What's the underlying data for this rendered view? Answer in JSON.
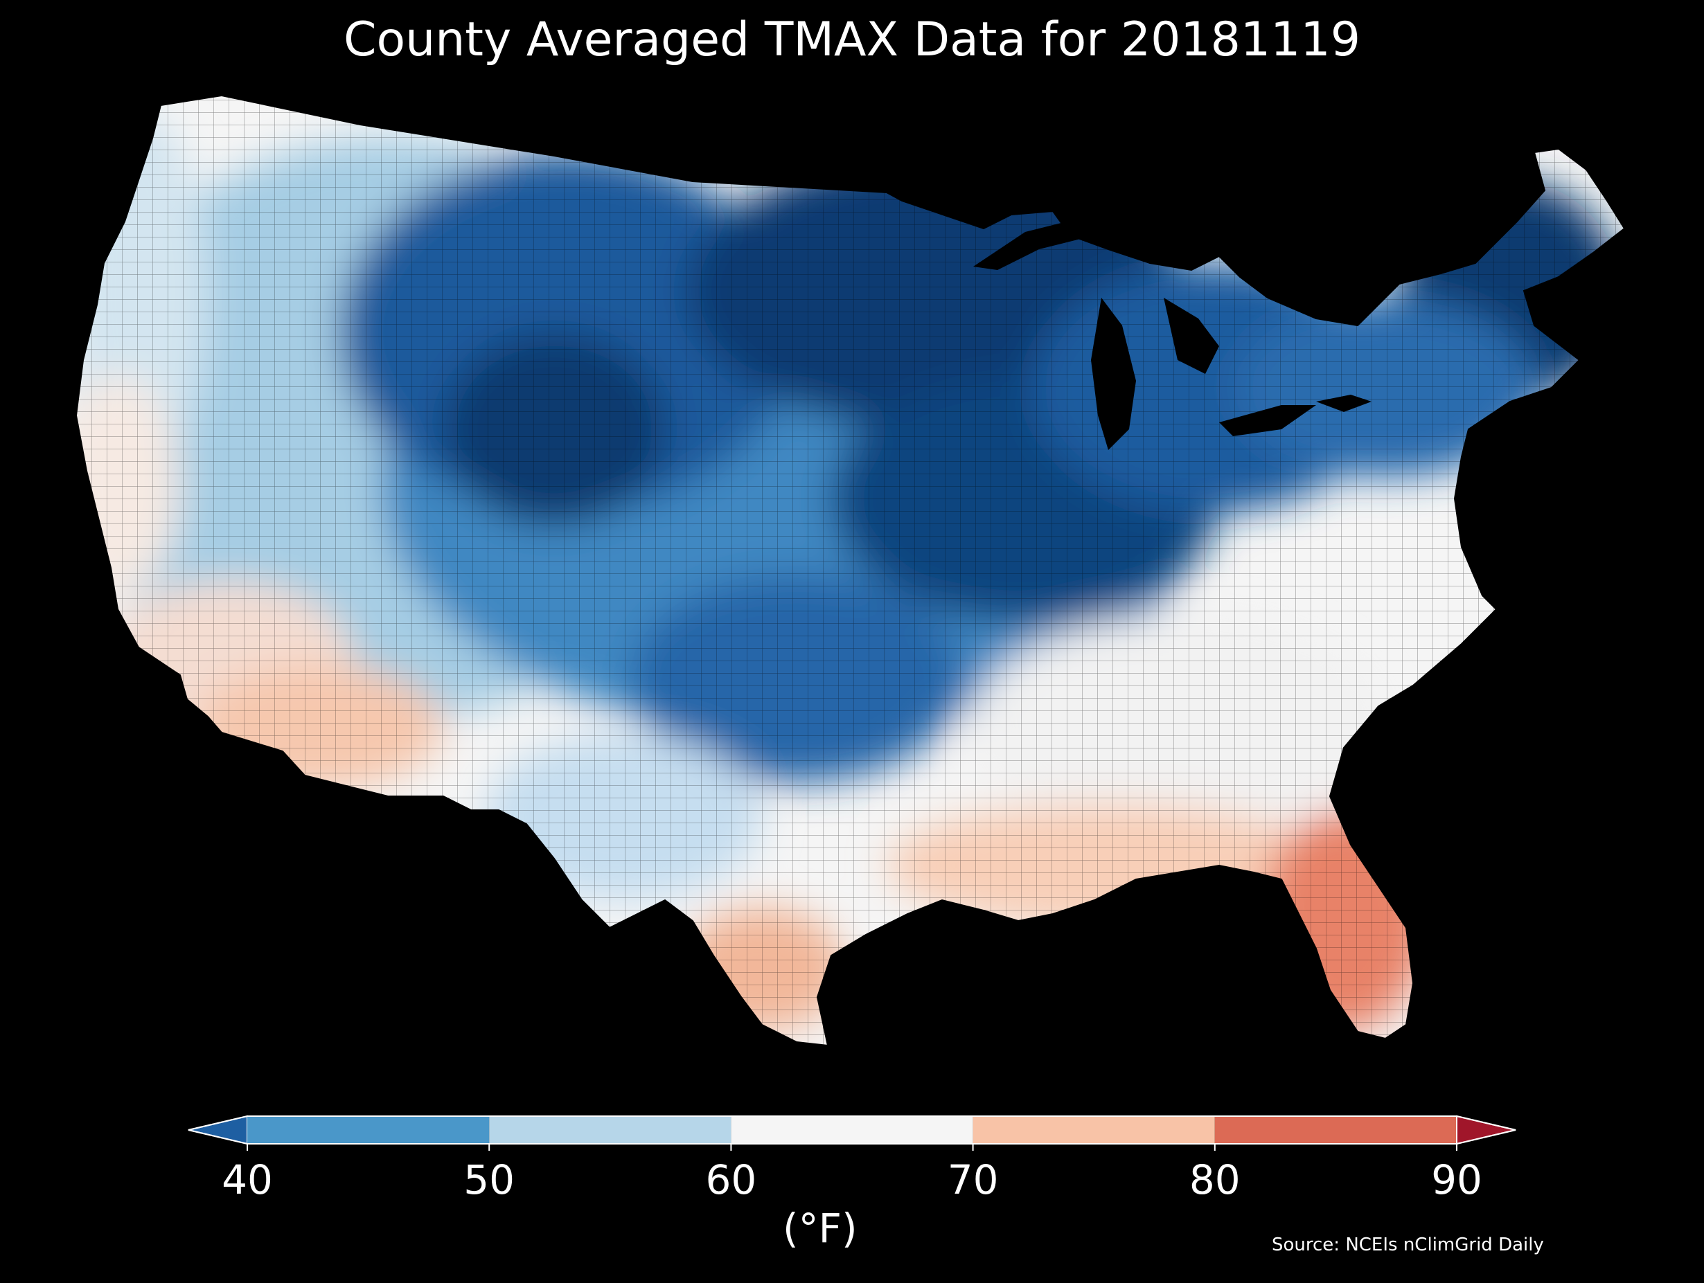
{
  "title": "County Averaged TMAX Data for 20181119",
  "colorbar": {
    "unit_label": "(°F)",
    "ticks": [
      "40",
      "50",
      "60",
      "70",
      "80",
      "90"
    ],
    "bins": [
      {
        "range": "<40",
        "color": "#1e5fa2"
      },
      {
        "range": "40-50",
        "color": "#4a97c9"
      },
      {
        "range": "50-60",
        "color": "#b6d6e9"
      },
      {
        "range": "60-70",
        "color": "#f5f5f5"
      },
      {
        "range": "70-80",
        "color": "#f8c3a7"
      },
      {
        "range": "80-90",
        "color": "#dc6a55"
      },
      {
        "range": ">90",
        "color": "#a0162a"
      }
    ],
    "extend": "both"
  },
  "source": "Source: NCEIs nClimGrid Daily",
  "map": {
    "region": "Contiguous United States, county level",
    "variable": "TMAX",
    "units": "°F",
    "pattern": "coldest (<40) across northern Rockies, upper Midwest and New England; warmest (70-85) in southern Florida, south Texas and southern California/Arizona"
  }
}
